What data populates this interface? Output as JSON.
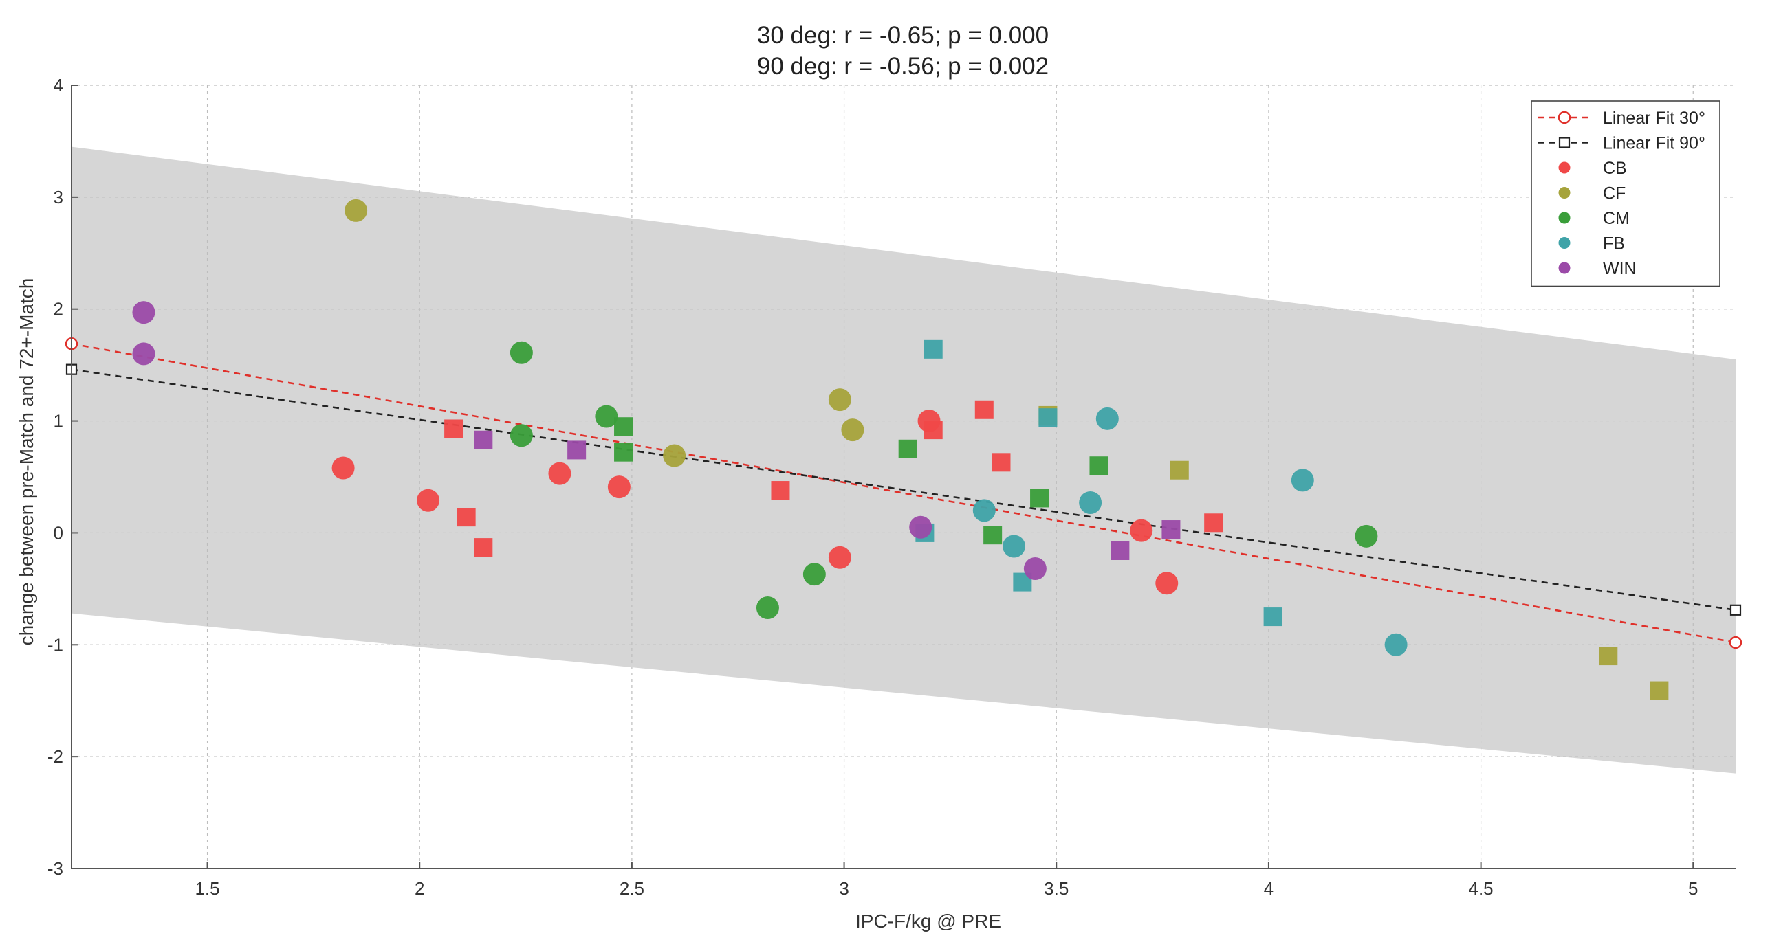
{
  "chart_data": {
    "type": "scatter",
    "title_lines": [
      "30 deg: r = -0.65; p = 0.000",
      "90 deg: r = -0.56; p = 0.002"
    ],
    "xlabel": "IPC-F/kg @ PRE",
    "ylabel": "change between pre-Match and 72+-Match",
    "xlim": [
      1.18,
      5.1
    ],
    "ylim": [
      -3,
      4
    ],
    "x_ticks": [
      1.5,
      2,
      2.5,
      3,
      3.5,
      4,
      4.5,
      5
    ],
    "x_tick_labels": [
      "1.5",
      "2",
      "2.5",
      "3",
      "3.5",
      "4",
      "4.5",
      "5"
    ],
    "y_ticks": [
      -3,
      -2,
      -1,
      0,
      1,
      2,
      3,
      4
    ],
    "y_tick_labels": [
      "-3",
      "-2",
      "-1",
      "0",
      "1",
      "2",
      "3",
      "4"
    ],
    "grid": true,
    "legend_position": "top-right",
    "confidence_band": {
      "x": [
        1.18,
        5.1
      ],
      "upper": [
        3.45,
        1.55
      ],
      "lower": [
        -0.72,
        -2.15
      ],
      "color": "#d6d6d6"
    },
    "fits": [
      {
        "name": "Linear Fit 30°",
        "x": [
          1.18,
          5.1
        ],
        "y": [
          1.69,
          -0.98
        ],
        "color": "#e0302a",
        "marker": "circle"
      },
      {
        "name": "Linear Fit 90°",
        "x": [
          1.18,
          5.1
        ],
        "y": [
          1.46,
          -0.69
        ],
        "color": "#222222",
        "marker": "square"
      }
    ],
    "groups": [
      {
        "name": "CB",
        "color": "#f04848",
        "circles": [
          [
            1.82,
            0.58
          ],
          [
            2.02,
            0.29
          ],
          [
            2.33,
            0.53
          ],
          [
            2.47,
            0.41
          ],
          [
            2.99,
            -0.22
          ],
          [
            3.2,
            1.0
          ],
          [
            3.7,
            0.02
          ],
          [
            3.76,
            -0.45
          ]
        ],
        "squares": [
          [
            2.08,
            0.93
          ],
          [
            2.11,
            0.14
          ],
          [
            2.15,
            -0.13
          ],
          [
            2.85,
            0.38
          ],
          [
            3.21,
            0.92
          ],
          [
            3.33,
            1.1
          ],
          [
            3.37,
            0.63
          ],
          [
            3.87,
            0.09
          ]
        ]
      },
      {
        "name": "CF",
        "color": "#a6a33b",
        "circles": [
          [
            1.85,
            2.88
          ],
          [
            2.6,
            0.69
          ],
          [
            2.99,
            1.19
          ],
          [
            3.02,
            0.92
          ]
        ],
        "squares": [
          [
            3.48,
            1.05
          ],
          [
            3.79,
            0.56
          ],
          [
            4.8,
            -1.1
          ],
          [
            4.92,
            -1.41
          ]
        ]
      },
      {
        "name": "CM",
        "color": "#3a9e3a",
        "circles": [
          [
            2.24,
            1.61
          ],
          [
            2.24,
            0.87
          ],
          [
            2.44,
            1.04
          ],
          [
            2.82,
            -0.67
          ],
          [
            2.93,
            -0.37
          ],
          [
            4.23,
            -0.03
          ]
        ],
        "squares": [
          [
            2.48,
            0.95
          ],
          [
            2.48,
            0.72
          ],
          [
            3.15,
            0.75
          ],
          [
            3.35,
            -0.02
          ],
          [
            3.46,
            0.31
          ],
          [
            3.6,
            0.6
          ]
        ]
      },
      {
        "name": "FB",
        "color": "#3fa3a8",
        "circles": [
          [
            3.33,
            0.2
          ],
          [
            3.4,
            -0.12
          ],
          [
            3.58,
            0.27
          ],
          [
            3.62,
            1.02
          ],
          [
            4.08,
            0.47
          ],
          [
            4.3,
            -1.0
          ]
        ],
        "squares": [
          [
            3.21,
            1.64
          ],
          [
            3.19,
            0.0
          ],
          [
            3.42,
            -0.44
          ],
          [
            3.48,
            1.03
          ],
          [
            4.01,
            -0.75
          ]
        ]
      },
      {
        "name": "WIN",
        "color": "#9b4aa8",
        "circles": [
          [
            1.35,
            1.97
          ],
          [
            1.35,
            1.6
          ],
          [
            3.18,
            0.05
          ],
          [
            3.45,
            -0.32
          ]
        ],
        "squares": [
          [
            2.15,
            0.83
          ],
          [
            2.37,
            0.74
          ],
          [
            3.65,
            -0.16
          ],
          [
            3.77,
            0.03
          ]
        ]
      }
    ]
  }
}
